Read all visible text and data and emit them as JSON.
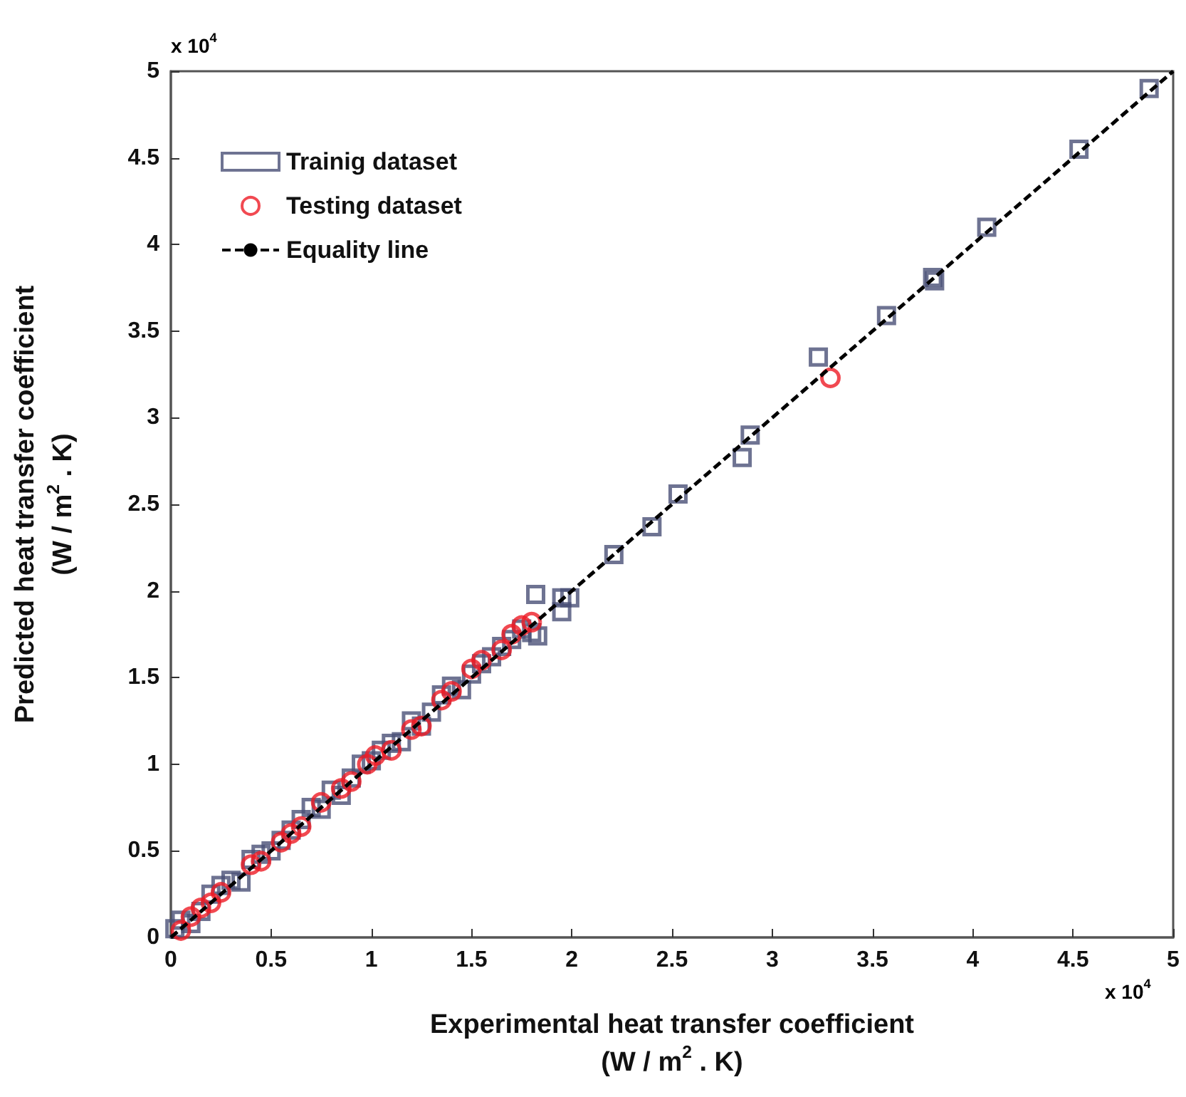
{
  "chart_data": {
    "type": "scatter",
    "xlabel": "Experimental heat transfer coefficient\n(W / m$^{2}$ . K)",
    "ylabel": "Predicted heat transfer coefficient\n(W / m$^{2}$ . K)",
    "annotations": [
      "x 10$^{4}$",
      "x 10$^{4}$"
    ],
    "xlim": [
      0,
      5
    ],
    "ylim": [
      0,
      5
    ],
    "xticks": [
      0,
      0.5,
      1,
      1.5,
      2,
      2.5,
      3,
      3.5,
      4,
      4.5,
      5
    ],
    "yticks": [
      0,
      0.5,
      1,
      1.5,
      2,
      2.5,
      3,
      3.5,
      4,
      4.5,
      5
    ],
    "grid": false,
    "legend": "top left",
    "series": [
      {
        "name": "Trainig dataset",
        "color": "#4a5077",
        "marker": "square",
        "x": [
          0.02,
          0.05,
          0.1,
          0.15,
          0.2,
          0.25,
          0.3,
          0.35,
          0.4,
          0.45,
          0.5,
          0.55,
          0.6,
          0.65,
          0.7,
          0.75,
          0.8,
          0.85,
          0.9,
          0.95,
          1.0,
          1.05,
          1.1,
          1.15,
          1.2,
          1.25,
          1.3,
          1.35,
          1.4,
          1.45,
          1.5,
          1.55,
          1.6,
          1.65,
          1.7,
          1.75,
          1.8,
          1.82,
          1.83,
          1.95,
          1.95,
          1.99,
          2.21,
          2.4,
          2.53,
          2.85,
          2.89,
          3.23,
          3.57,
          3.8,
          3.81,
          4.07,
          4.53,
          4.88
        ],
        "values": [
          0.05,
          0.1,
          0.08,
          0.15,
          0.25,
          0.3,
          0.33,
          0.32,
          0.45,
          0.48,
          0.5,
          0.56,
          0.62,
          0.68,
          0.75,
          0.74,
          0.85,
          0.82,
          0.92,
          1.0,
          1.02,
          1.08,
          1.12,
          1.13,
          1.25,
          1.22,
          1.3,
          1.4,
          1.45,
          1.43,
          1.52,
          1.58,
          1.62,
          1.68,
          1.72,
          1.78,
          1.76,
          1.98,
          1.74,
          1.96,
          1.88,
          1.96,
          2.21,
          2.37,
          2.56,
          2.77,
          2.9,
          3.35,
          3.59,
          3.81,
          3.79,
          4.1,
          4.55,
          4.9
        ]
      },
      {
        "name": "Testing dataset",
        "color": "#ee1c25",
        "marker": "circle",
        "x": [
          0.05,
          0.1,
          0.15,
          0.2,
          0.25,
          0.4,
          0.45,
          0.55,
          0.6,
          0.65,
          0.75,
          0.85,
          0.9,
          0.98,
          1.02,
          1.1,
          1.2,
          1.25,
          1.35,
          1.4,
          1.5,
          1.55,
          1.65,
          1.7,
          1.75,
          1.8,
          3.29
        ],
        "values": [
          0.04,
          0.12,
          0.17,
          0.2,
          0.26,
          0.42,
          0.44,
          0.55,
          0.6,
          0.64,
          0.78,
          0.86,
          0.9,
          1.0,
          1.05,
          1.08,
          1.2,
          1.22,
          1.37,
          1.42,
          1.55,
          1.6,
          1.66,
          1.75,
          1.8,
          1.82,
          3.23
        ]
      },
      {
        "name": "Equality line",
        "type": "line",
        "color": "#000000",
        "marker": "none",
        "line_style": "dashed",
        "x": [
          0,
          5
        ],
        "values": [
          0,
          5
        ]
      }
    ]
  }
}
